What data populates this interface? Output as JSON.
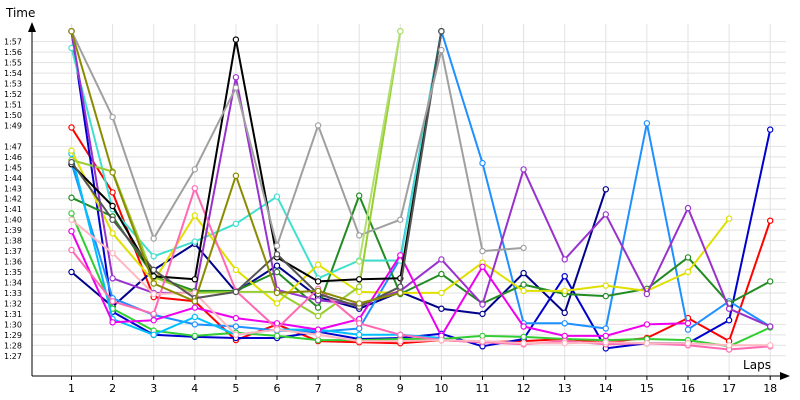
{
  "chart_data": {
    "type": "line",
    "ylabel": "Time",
    "xlabel": "Laps",
    "grid": true,
    "ylim": [
      "1:27",
      "1:58"
    ],
    "xlim": [
      1,
      18
    ],
    "x": [
      1,
      2,
      3,
      4,
      5,
      6,
      7,
      8,
      9,
      10,
      11,
      12,
      13,
      14,
      15,
      16,
      17,
      18
    ],
    "y_ticks": [
      "1:27",
      "1:28",
      "1:29",
      "1:30",
      "1:31",
      "1:32",
      "1:33",
      "1:34",
      "1:35",
      "1:36",
      "1:37",
      "1:38",
      "1:39",
      "1:40",
      "1:41",
      "1:42",
      "1:43",
      "1:44",
      "1:45",
      "1:46",
      "1:47",
      "1:49",
      "1:50",
      "1:51",
      "1:52",
      "1:53",
      "1:54",
      "1:55",
      "1:56",
      "1:57"
    ],
    "series": [
      {
        "color": "#ff0000",
        "values": [
          "1:48.8",
          "1:42.6",
          "1:32.6",
          "1:32.2",
          "1:28.5",
          "1:30.0",
          "1:28.4",
          "1:28.3",
          "1:28.2",
          "1:28.5",
          "1:28.3",
          "1:28.4",
          "1:28.6",
          "1:28.3",
          "1:28.7",
          "1:30.6",
          "1:28.4",
          "1:39.9"
        ]
      },
      {
        "color": "#00008b",
        "values": [
          "1:35.0",
          "1:31.7",
          "1:35.2",
          "1:37.7",
          "1:33.1",
          "1:35.6",
          "1:32.6",
          "1:31.5",
          "1:33.1",
          "1:31.5",
          "1:31.0",
          "1:34.9",
          "1:31.1",
          "1:42.9",
          null,
          null,
          null,
          null
        ]
      },
      {
        "color": "#0000cd",
        "values": [
          "1:58.0",
          "1:31.2",
          "1:29.0",
          "1:28.8",
          "1:28.7",
          "1:28.7",
          "1:29.3",
          "1:28.6",
          "1:28.7",
          "1:29.1",
          "1:27.9",
          "1:28.6",
          "1:34.6",
          "1:27.7",
          "1:28.2",
          "1:28.2",
          "1:30.4",
          "1:48.6"
        ]
      },
      {
        "color": "#1e90ff",
        "values": [
          "1:45.4",
          "1:32.5",
          "1:30.9",
          "1:30.0",
          "1:29.8",
          "1:29.4",
          "1:29.3",
          "1:29.6",
          "1:36.3",
          "1:58.0",
          "1:45.4",
          "1:30.1",
          "1:30.1",
          "1:29.6",
          "1:49.2",
          "1:29.5",
          "1:32.2",
          "1:29.8"
        ]
      },
      {
        "color": "#228b22",
        "values": [
          "1:42.1",
          "1:40.3",
          "1:34.6",
          "1:33.2",
          "1:33.2",
          "1:35.0",
          "1:31.6",
          "1:42.3",
          "1:32.9",
          "1:34.8",
          "1:32.0",
          "1:33.8",
          "1:32.9",
          "1:32.7",
          "1:33.4",
          "1:36.4",
          "1:32.0",
          "1:34.1"
        ]
      },
      {
        "color": "#32cd32",
        "values": [
          "1:40.6",
          "1:31.5",
          "1:29.4",
          "1:28.9",
          "1:29.2",
          "1:28.9",
          "1:28.5",
          "1:28.5",
          "1:28.6",
          "1:28.6",
          "1:28.9",
          "1:28.8",
          "1:28.6",
          "1:28.5",
          "1:28.6",
          "1:28.5",
          "1:27.9",
          "1:29.7"
        ]
      },
      {
        "color": "#00bfff",
        "values": [
          "1:46.3",
          "1:30.5",
          "1:29.0",
          "1:30.7",
          "1:29.0",
          "1:29.5",
          "1:29.5",
          "1:29.0",
          "1:29.0",
          "1:28.7",
          null,
          null,
          null,
          null,
          null,
          null,
          null,
          null
        ]
      },
      {
        "color": "#40e0d0",
        "values": [
          "1:56.4",
          "1:41.0",
          "1:36.5",
          "1:37.9",
          "1:39.6",
          "1:42.2",
          "1:34.4",
          "1:36.1",
          "1:36.1",
          "1:58.0",
          null,
          null,
          null,
          null,
          null,
          null,
          null,
          null
        ]
      },
      {
        "color": "#e0e000",
        "values": [
          "1:46.6",
          "1:38.7",
          "1:34.1",
          "1:40.4",
          "1:35.2",
          "1:32.0",
          "1:35.7",
          "1:33.1",
          "1:33.0",
          "1:33.0",
          "1:35.9",
          "1:33.2",
          "1:33.2",
          "1:33.7",
          "1:33.2",
          "1:35.0",
          "1:40.1",
          null
        ]
      },
      {
        "color": "#9acd32",
        "values": [
          "1:45.7",
          "1:44.6",
          "1:34.5",
          "1:33.0",
          "1:33.1",
          "1:33.1",
          "1:30.8",
          "1:33.6",
          "1:58.0",
          null,
          null,
          null,
          null,
          null,
          null,
          null,
          null,
          null
        ]
      },
      {
        "color": "#9932cc",
        "values": [
          "1:58.0",
          "1:34.4",
          "1:33.0",
          "1:33.0",
          "1:53.6",
          "1:33.3",
          "1:32.3",
          "1:31.9",
          "1:33.2",
          "1:36.2",
          "1:31.9",
          "1:44.8",
          "1:36.2",
          "1:40.5",
          "1:32.9",
          "1:41.1",
          "1:31.5",
          "1:29.8"
        ]
      },
      {
        "color": "#ee00ee",
        "values": [
          "1:38.9",
          "1:30.2",
          "1:30.4",
          "1:31.6",
          "1:30.6",
          "1:30.1",
          "1:29.5",
          "1:30.5",
          "1:36.6",
          "1:28.9",
          "1:35.5",
          "1:29.8",
          "1:28.9",
          "1:28.9",
          "1:30.0",
          "1:30.1",
          null,
          null
        ]
      },
      {
        "color": "#ff69b4",
        "values": [
          "1:37.1",
          "1:32.2",
          "1:31.0",
          "1:43.0",
          "1:33.2",
          "1:29.6",
          "1:33.4",
          "1:30.1",
          "1:29.0",
          "1:28.5",
          "1:28.3",
          "1:28.1",
          "1:28.4",
          "1:28.1",
          "1:28.2",
          "1:28.0",
          "1:27.6",
          "1:27.9"
        ]
      },
      {
        "color": "#ffb6c1",
        "values": [
          "1:40.0",
          "1:36.8",
          "1:32.9",
          "1:33.0",
          "1:29.0",
          "1:29.5",
          "1:29.0",
          "1:28.4",
          "1:28.4",
          "1:28.5",
          "1:28.4",
          "1:28.2",
          "1:28.2",
          "1:28.3",
          "1:28.2",
          "1:28.2",
          "1:28.0",
          "1:28.0"
        ]
      },
      {
        "color": "#000000",
        "values": [
          "1:45.3",
          "1:41.3",
          "1:34.6",
          "1:34.3",
          "1:57.2",
          "1:36.4",
          "1:34.1",
          "1:34.3",
          "1:34.4",
          "1:58.0",
          null,
          null,
          null,
          null,
          null,
          null,
          null,
          null
        ]
      },
      {
        "color": "#555555",
        "values": [
          "1:45.5",
          "1:40.0",
          "1:35.2",
          "1:32.5",
          "1:33.1",
          "1:36.7",
          "1:32.9",
          "1:31.7",
          "1:33.6",
          "1:58.0",
          null,
          null,
          null,
          null,
          null,
          null,
          null,
          null
        ]
      },
      {
        "color": "#a0a0a0",
        "values": [
          "1:58.0",
          "1:49.8",
          "1:38.2",
          "1:44.8",
          "1:52.6",
          "1:37.5",
          "1:49.0",
          "1:38.5",
          "1:40.0",
          "1:56.2",
          "1:37.0",
          "1:37.3",
          null,
          null,
          null,
          null,
          null,
          null
        ]
      },
      {
        "color": "#8b8b00",
        "values": [
          "1:58.0",
          "1:44.5",
          "1:33.9",
          "1:32.2",
          "1:44.2",
          "1:33.0",
          "1:33.2",
          "1:32.0",
          "1:33.0",
          null,
          null,
          null,
          null,
          null,
          null,
          null,
          null,
          null
        ]
      },
      {
        "color": "#b0e070",
        "values": [
          null,
          null,
          null,
          null,
          null,
          null,
          null,
          "1:36.0",
          "1:58.0",
          null,
          null,
          null,
          null,
          null,
          null,
          null,
          null,
          null
        ]
      }
    ]
  }
}
